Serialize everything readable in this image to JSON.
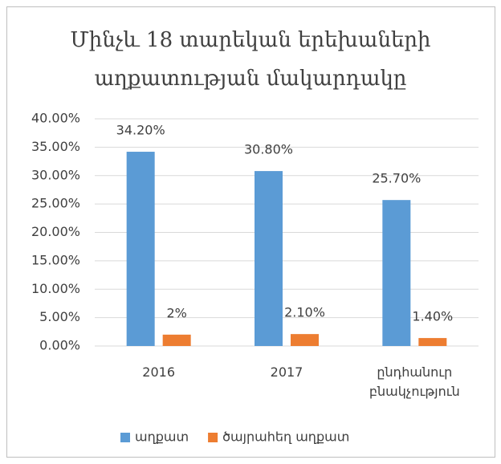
{
  "chart_data": {
    "type": "bar",
    "title": "Մինչև 18 տարեկան երեխաների աղքատության մակարդակը",
    "categories": [
      "2016",
      "2017",
      "ընդհանուր բնակչություն"
    ],
    "series": [
      {
        "name": "աղքատ",
        "color": "#5b9bd5",
        "values": [
          34.2,
          30.8,
          25.7
        ],
        "value_labels": [
          "34.20%",
          "30.80%",
          "25.70%"
        ]
      },
      {
        "name": "ծայրահեղ աղքատ",
        "color": "#ed7d31",
        "values": [
          2,
          2.1,
          1.4
        ],
        "value_labels": [
          "2%",
          "2.10%",
          "1.40%"
        ]
      }
    ],
    "ylim": [
      0,
      40
    ],
    "yticks": [
      {
        "value": 0,
        "label": "0.00%"
      },
      {
        "value": 5,
        "label": "5.00%"
      },
      {
        "value": 10,
        "label": "10.00%"
      },
      {
        "value": 15,
        "label": "15.00%"
      },
      {
        "value": 20,
        "label": "20.00%"
      },
      {
        "value": 25,
        "label": "25.00%"
      },
      {
        "value": 30,
        "label": "30.00%"
      },
      {
        "value": 35,
        "label": "35.00%"
      },
      {
        "value": 40,
        "label": "40.00%"
      }
    ],
    "grid": true,
    "legend": "bottom"
  }
}
